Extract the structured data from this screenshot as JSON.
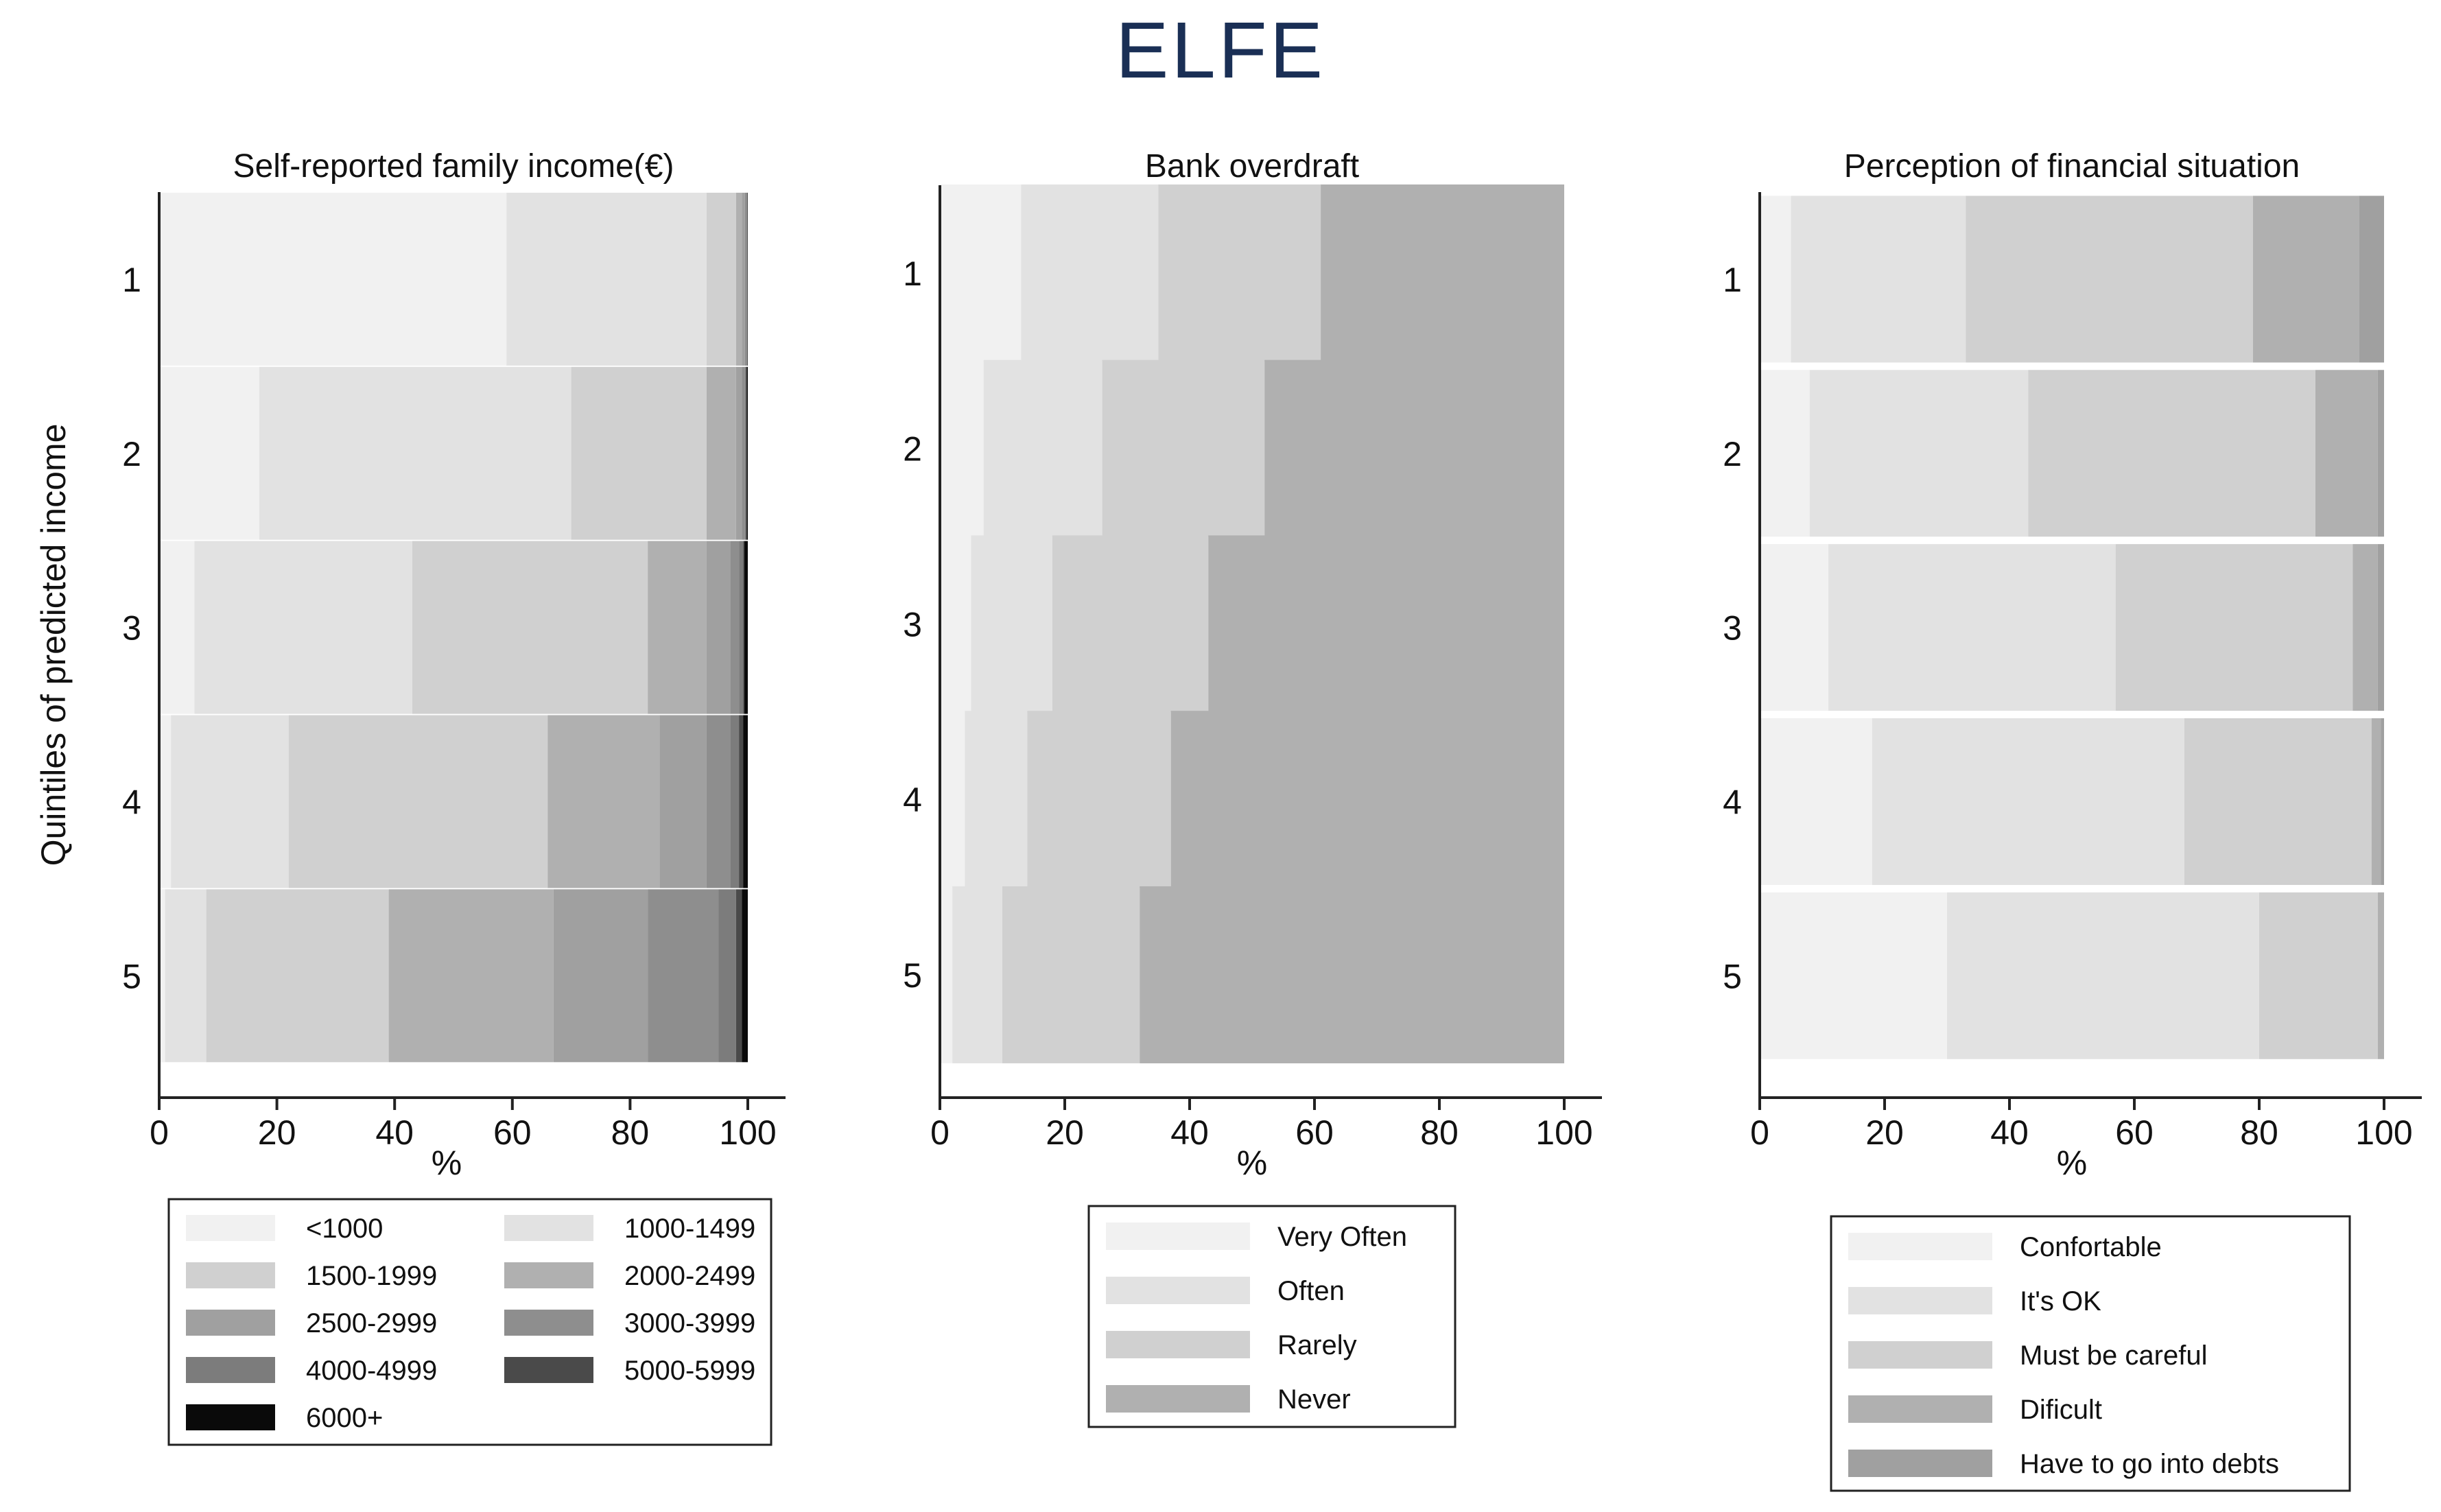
{
  "title": "ELFE",
  "ylabel": "Quintiles of predicted income",
  "chart_data": [
    {
      "type": "bar",
      "orientation": "horizontal",
      "stacked": true,
      "title": "Self-reported family income(€)",
      "xlabel": "%",
      "xlim": [
        0,
        100
      ],
      "xticks": [
        "0",
        "20",
        "40",
        "60",
        "80",
        "100"
      ],
      "categories": [
        "1",
        "2",
        "3",
        "4",
        "5"
      ],
      "colors": [
        "#f1f1f1",
        "#e2e2e2",
        "#d0d0d0",
        "#b0b0b0",
        "#a0a0a0",
        "#8e8e8e",
        "#7c7c7c",
        "#4a4a4a",
        "#0a0a0a"
      ],
      "series": [
        {
          "name": "<1000",
          "values": [
            59,
            17,
            6,
            2,
            1
          ]
        },
        {
          "name": "1000-1499",
          "values": [
            34,
            53,
            37,
            20,
            7
          ]
        },
        {
          "name": "1500-1999",
          "values": [
            5,
            23,
            40,
            44,
            31
          ]
        },
        {
          "name": "2000-2499",
          "values": [
            1,
            5,
            10,
            19,
            28
          ]
        },
        {
          "name": "2500-2999",
          "values": [
            0.5,
            1,
            4,
            8,
            16
          ]
        },
        {
          "name": "3000-3999",
          "values": [
            0.3,
            0.5,
            1.5,
            4,
            12
          ]
        },
        {
          "name": "4000-4999",
          "values": [
            0.1,
            0.2,
            0.7,
            1.5,
            3
          ]
        },
        {
          "name": "5000-5999",
          "values": [
            0.05,
            0.1,
            0.2,
            0.7,
            1
          ]
        },
        {
          "name": "6000+",
          "values": [
            0.05,
            0.2,
            0.6,
            0.8,
            1
          ]
        }
      ],
      "legend_position": "bottom"
    },
    {
      "type": "bar",
      "orientation": "horizontal",
      "stacked": true,
      "title": "Bank overdraft",
      "xlabel": "%",
      "xlim": [
        0,
        100
      ],
      "xticks": [
        "0",
        "20",
        "40",
        "60",
        "80",
        "100"
      ],
      "categories": [
        "1",
        "2",
        "3",
        "4",
        "5"
      ],
      "colors": [
        "#f1f1f1",
        "#e2e2e2",
        "#d0d0d0",
        "#b0b0b0"
      ],
      "series": [
        {
          "name": "Very Often",
          "values": [
            13,
            7,
            5,
            4,
            2
          ]
        },
        {
          "name": "Often",
          "values": [
            22,
            19,
            13,
            10,
            8
          ]
        },
        {
          "name": "Rarely",
          "values": [
            26,
            26,
            25,
            23,
            22
          ]
        },
        {
          "name": "Never",
          "values": [
            39,
            48,
            57,
            63,
            68
          ]
        }
      ],
      "legend_position": "bottom"
    },
    {
      "type": "bar",
      "orientation": "horizontal",
      "stacked": true,
      "title": "Perception of financial situation",
      "xlabel": "%",
      "xlim": [
        0,
        100
      ],
      "xticks": [
        "0",
        "20",
        "40",
        "60",
        "80",
        "100"
      ],
      "categories": [
        "1",
        "2",
        "3",
        "4",
        "5"
      ],
      "colors": [
        "#f1f1f1",
        "#e2e2e2",
        "#d0d0d0",
        "#b0b0b0",
        "#a0a0a0"
      ],
      "series": [
        {
          "name": "Confortable",
          "values": [
            5,
            8,
            11,
            18,
            30
          ]
        },
        {
          "name": "It's OK",
          "values": [
            28,
            35,
            46,
            50,
            50
          ]
        },
        {
          "name": "Must be careful",
          "values": [
            46,
            46,
            38,
            30,
            19
          ]
        },
        {
          "name": "Dificult",
          "values": [
            17,
            10,
            4,
            1.5,
            1
          ]
        },
        {
          "name": "Have to go into debts",
          "values": [
            4,
            1,
            1,
            0.5,
            0
          ]
        }
      ],
      "legend_position": "bottom"
    }
  ]
}
